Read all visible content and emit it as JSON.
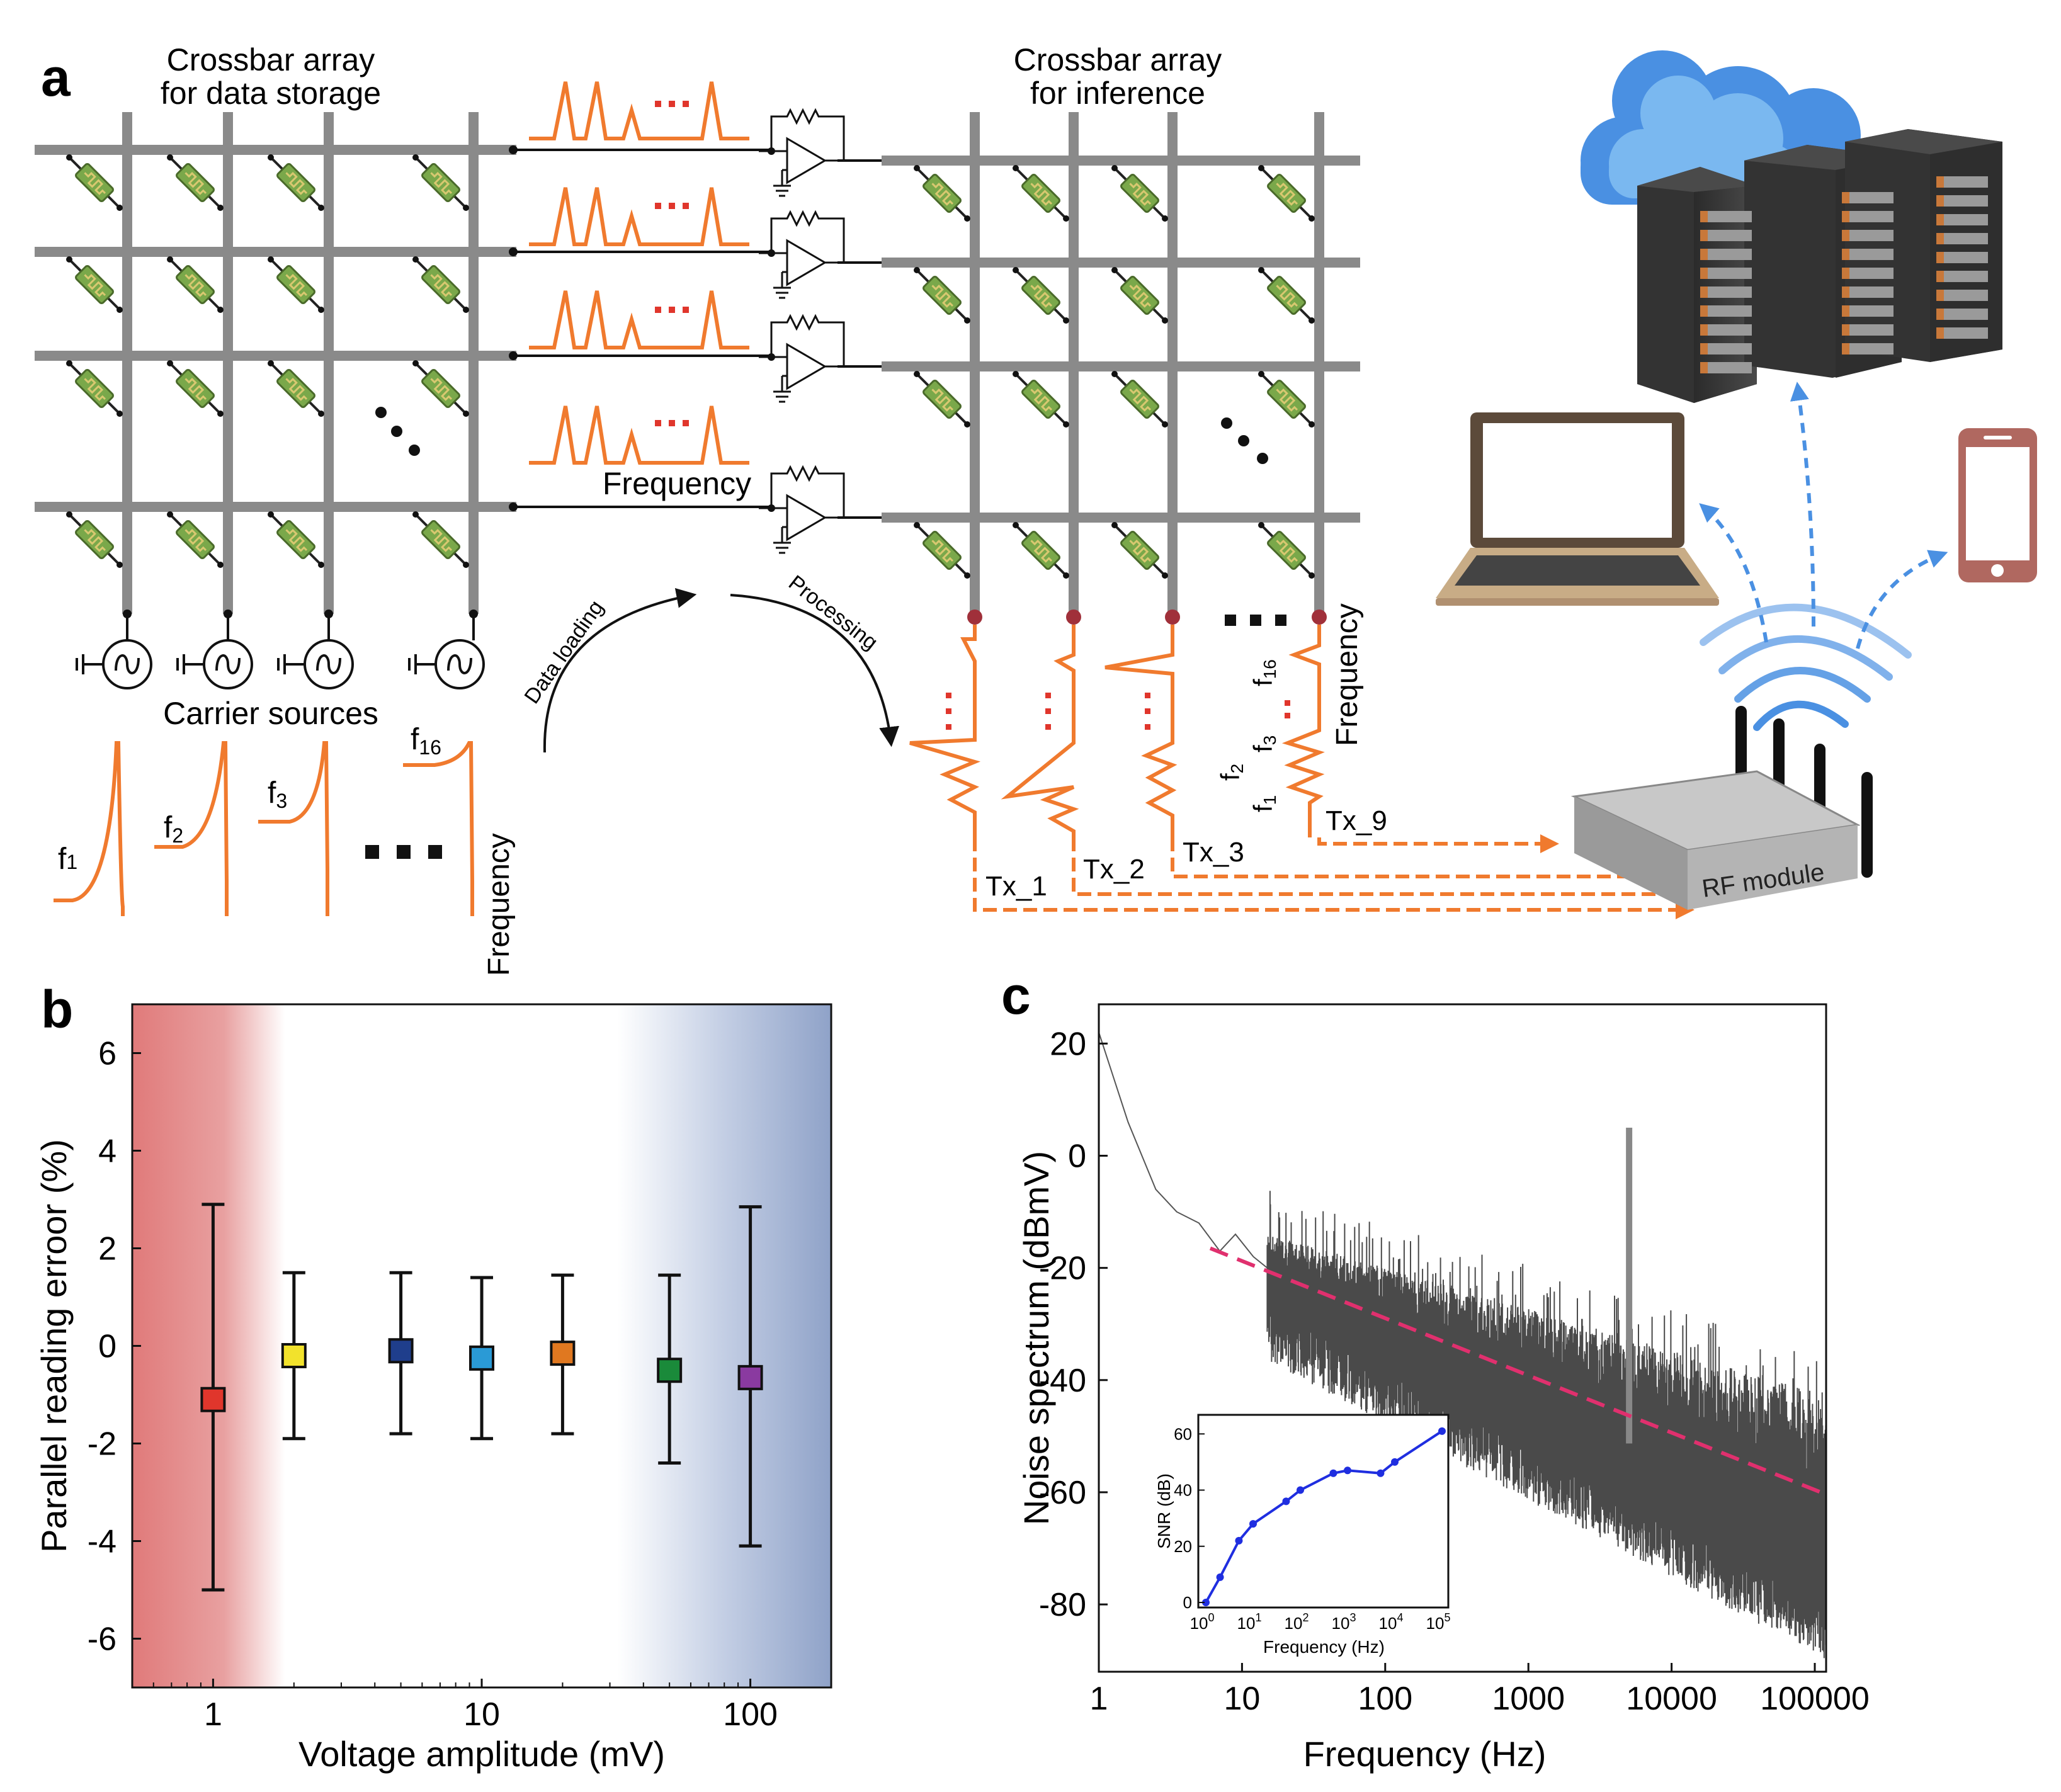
{
  "panel_a": {
    "label": "a",
    "storage_title": [
      "Crossbar array",
      "for data storage"
    ],
    "inference_title": [
      "Crossbar array",
      "for inference"
    ],
    "carrier_label": "Carrier sources",
    "frequency_label": "Frequency",
    "data_loading": "Data loading",
    "processing": "Processing",
    "carriers": [
      {
        "name": "f",
        "sub": "1"
      },
      {
        "name": "f",
        "sub": "2"
      },
      {
        "name": "f",
        "sub": "3"
      },
      {
        "name": "f",
        "sub": "16"
      }
    ],
    "spectrum_freqs": [
      {
        "name": "f",
        "sub": "1"
      },
      {
        "name": "f",
        "sub": "2"
      },
      {
        "name": "f",
        "sub": "3"
      },
      {
        "name": "f",
        "sub": "16"
      }
    ],
    "tx_labels": [
      "Tx_1",
      "Tx_2",
      "Tx_3",
      "Tx_9"
    ],
    "rf_module": "RF module",
    "colors": {
      "signal": "#f07a2e",
      "grid": "#8a8a8a",
      "memristor": "#7aa84a",
      "arrow_blue": "#4a90e2",
      "node": "#a0303a"
    }
  },
  "panel_b": {
    "label": "b",
    "chart_data": {
      "type": "scatter",
      "xscale": "log",
      "xlabel": "Voltage amplitude (mV)",
      "ylabel": "Parallel reading erroor (%)",
      "xlim": [
        0.5,
        200
      ],
      "ylim": [
        -7,
        7
      ],
      "xticks": [
        {
          "v": 1,
          "label": "1"
        },
        {
          "v": 10,
          "label": "10"
        },
        {
          "v": 100,
          "label": "100"
        }
      ],
      "yticks": [
        {
          "v": 6,
          "label": "6"
        },
        {
          "v": 4,
          "label": "4"
        },
        {
          "v": 2,
          "label": "2"
        },
        {
          "v": 0,
          "label": "0"
        },
        {
          "v": -2,
          "label": "-2"
        },
        {
          "v": -4,
          "label": "-4"
        },
        {
          "v": -6,
          "label": "-6"
        }
      ],
      "points": [
        {
          "x": 1,
          "y": -1.1,
          "low": -5.0,
          "high": 2.9,
          "color": "#e0362c"
        },
        {
          "x": 2,
          "y": -0.2,
          "low": -1.9,
          "high": 1.5,
          "color": "#f2e22c"
        },
        {
          "x": 5,
          "y": -0.1,
          "low": -1.8,
          "high": 1.5,
          "color": "#1f3e8c"
        },
        {
          "x": 10,
          "y": -0.25,
          "low": -1.9,
          "high": 1.4,
          "color": "#2a9ad6"
        },
        {
          "x": 20,
          "y": -0.15,
          "low": -1.8,
          "high": 1.45,
          "color": "#e07820"
        },
        {
          "x": 50,
          "y": -0.5,
          "low": -2.4,
          "high": 1.45,
          "color": "#1a8a3a"
        },
        {
          "x": 100,
          "y": -0.65,
          "low": -4.1,
          "high": 2.85,
          "color": "#8a3aa0"
        }
      ],
      "shading": {
        "left_color": "#e07a7a",
        "right_color": "#8fa2c8"
      }
    }
  },
  "panel_c": {
    "label": "c",
    "chart_data": {
      "type": "line",
      "xscale": "log",
      "xlabel": "Frequency (Hz)",
      "ylabel": "Noise spectrum (dBmV)",
      "xlim": [
        1,
        120000
      ],
      "ylim": [
        -92,
        27
      ],
      "xticks": [
        {
          "v": 1,
          "label": "1"
        },
        {
          "v": 10,
          "label": "10"
        },
        {
          "v": 100,
          "label": "100"
        },
        {
          "v": 1000,
          "label": "1000"
        },
        {
          "v": 10000,
          "label": "10000"
        },
        {
          "v": 100000,
          "label": "100000"
        }
      ],
      "yticks": [
        {
          "v": 20,
          "label": "20"
        },
        {
          "v": 0,
          "label": "0"
        },
        {
          "v": -20,
          "label": "-20"
        },
        {
          "v": -40,
          "label": "-40"
        },
        {
          "v": -60,
          "label": "-60"
        },
        {
          "v": -80,
          "label": "-80"
        }
      ],
      "spectrum_points": [
        [
          1,
          22
        ],
        [
          1.6,
          6
        ],
        [
          2.5,
          -6
        ],
        [
          3.5,
          -10
        ],
        [
          5,
          -12
        ],
        [
          7,
          -17
        ],
        [
          9,
          -14
        ],
        [
          12,
          -18
        ],
        [
          15,
          -20
        ]
      ],
      "peak": {
        "x": 5000,
        "y": 5
      },
      "fit_line": {
        "x0": 6,
        "y0": -16.5,
        "x1": 110000,
        "y1": -60,
        "color": "#e0306e"
      },
      "inset": {
        "type": "line",
        "xscale": "log",
        "xlabel": "Frequency (Hz)",
        "ylabel": "SNR (dB)",
        "xlim": [
          1,
          100000
        ],
        "ylim": [
          0,
          65
        ],
        "xticks": [
          {
            "v": 1,
            "base": "10",
            "exp": "0"
          },
          {
            "v": 10,
            "base": "10",
            "exp": "1"
          },
          {
            "v": 100,
            "base": "10",
            "exp": "2"
          },
          {
            "v": 1000,
            "base": "10",
            "exp": "3"
          },
          {
            "v": 10000,
            "base": "10",
            "exp": "4"
          },
          {
            "v": 100000,
            "base": "10",
            "exp": "5"
          }
        ],
        "yticks": [
          {
            "v": 0,
            "label": "0"
          },
          {
            "v": 20,
            "label": "20"
          },
          {
            "v": 40,
            "label": "40"
          },
          {
            "v": 60,
            "label": "60"
          }
        ],
        "x": [
          1,
          2,
          5,
          10,
          50,
          100,
          500,
          1000,
          5000,
          10000,
          100000
        ],
        "y": [
          0,
          9,
          22,
          28,
          36,
          40,
          46,
          47,
          46,
          50,
          61
        ],
        "color": "#1f2ee0"
      }
    }
  }
}
